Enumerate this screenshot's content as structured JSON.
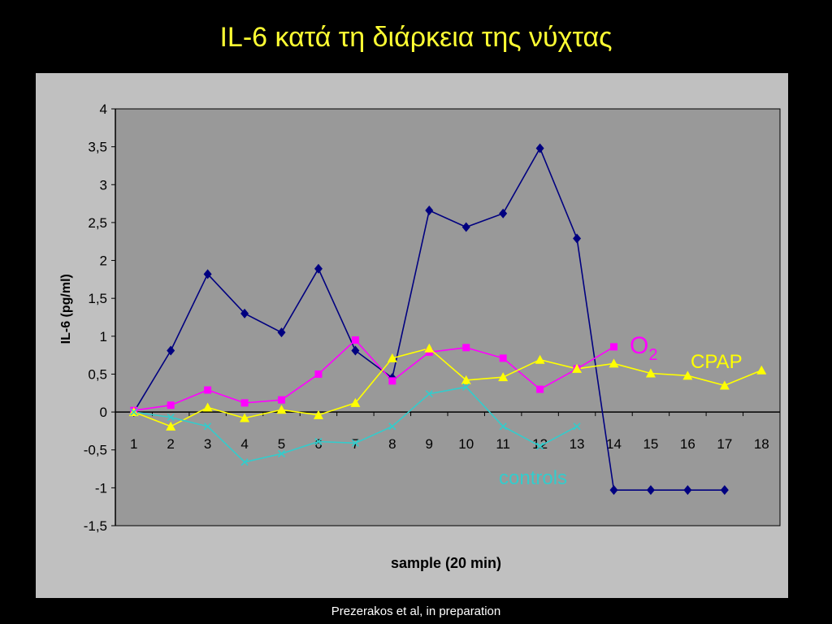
{
  "slide": {
    "title": "IL-6 κατά τη διάρκεια της νύχτας",
    "footer": "Prezerakos et al, in preparation"
  },
  "chart_data": {
    "type": "line",
    "title": "",
    "xlabel": "sample (20 min)",
    "ylabel": "IL-6 (pg/ml)",
    "categories": [
      "1",
      "2",
      "3",
      "4",
      "5",
      "6",
      "7",
      "8",
      "9",
      "10",
      "11",
      "12",
      "13",
      "14",
      "15",
      "16",
      "17",
      "18"
    ],
    "ylim": [
      -1.5,
      4
    ],
    "yticks": [
      4,
      3.5,
      3,
      2.5,
      2,
      1.5,
      1,
      0.5,
      0,
      -0.5,
      -1,
      -1.5
    ],
    "ytick_labels": [
      "4",
      "3,5",
      "3",
      "2,5",
      "2",
      "1,5",
      "1",
      "0,5",
      "0",
      "-0,5",
      "-1",
      "-1,5"
    ],
    "grid": false,
    "plot_background": "#999999",
    "series": [
      {
        "key": "osa",
        "name": "",
        "color": "#000080",
        "marker": "diamond",
        "values": [
          0,
          0.81,
          1.82,
          1.3,
          1.05,
          1.89,
          0.81,
          0.45,
          2.66,
          2.44,
          2.62,
          3.48,
          2.29,
          -1.03,
          -1.03,
          -1.03,
          -1.03,
          null
        ]
      },
      {
        "key": "o2",
        "name": "O",
        "name_sub": "2",
        "color": "#ff00ff",
        "marker": "square",
        "values": [
          0.02,
          0.09,
          0.29,
          0.12,
          0.16,
          0.5,
          0.95,
          0.41,
          0.79,
          0.85,
          0.71,
          0.3,
          0.57,
          0.86,
          null,
          null,
          null,
          null
        ]
      },
      {
        "key": "cpap",
        "name": "CPAP",
        "color": "#ffff00",
        "marker": "triangle",
        "values": [
          0,
          -0.19,
          0.06,
          -0.08,
          0.03,
          -0.04,
          0.12,
          0.71,
          0.84,
          0.42,
          0.46,
          0.69,
          0.57,
          0.64,
          0.51,
          0.48,
          0.35,
          0.55
        ]
      },
      {
        "key": "controls",
        "name": "controls",
        "color": "#33cccc",
        "marker": "x",
        "values": [
          0,
          -0.07,
          -0.19,
          -0.66,
          -0.55,
          -0.39,
          -0.41,
          -0.19,
          0.24,
          0.33,
          -0.19,
          -0.45,
          -0.19,
          null,
          null,
          null,
          null,
          null
        ]
      }
    ]
  }
}
